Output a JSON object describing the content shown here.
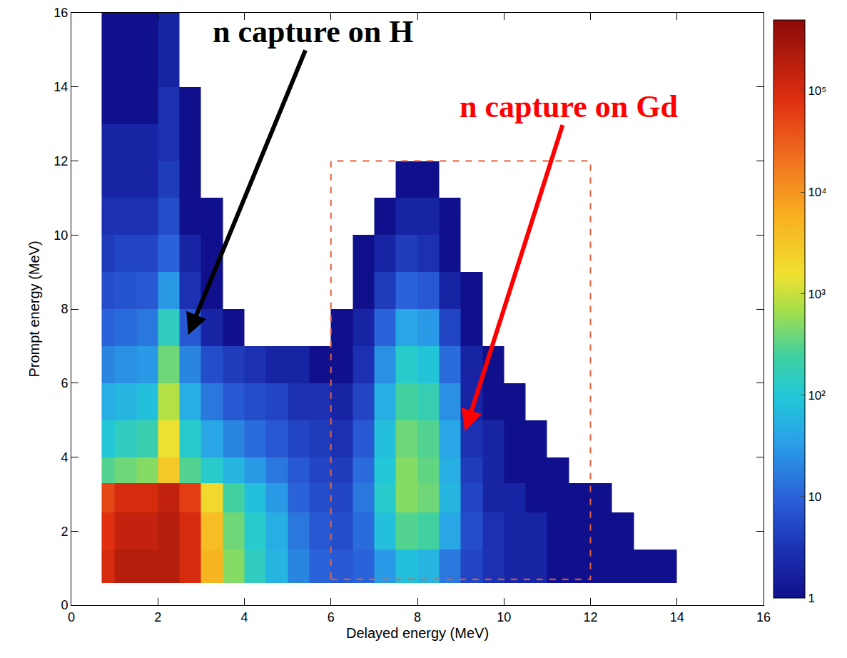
{
  "chart_data": {
    "type": "heatmap",
    "xlabel": "Delayed energy (MeV)",
    "ylabel": "Prompt energy (MeV)",
    "xlim": [
      0,
      16
    ],
    "ylim": [
      0,
      16
    ],
    "xticks": [
      0,
      2,
      4,
      6,
      8,
      10,
      12,
      14,
      16
    ],
    "yticks": [
      0,
      2,
      4,
      6,
      8,
      10,
      12,
      14,
      16
    ],
    "log": "z",
    "color_range": [
      1,
      500000
    ],
    "color_ticks": [
      1,
      10,
      {
        "value": 100,
        "label": "10²"
      },
      {
        "value": 1000,
        "label": "10³"
      },
      {
        "value": 10000,
        "label": "10⁴"
      },
      {
        "value": 100000,
        "label": "10⁵"
      }
    ],
    "x_bins": [
      0.7,
      1,
      1.5,
      2,
      2.5,
      3,
      3.5,
      4,
      4.5,
      5,
      5.5,
      6,
      6.5,
      7,
      7.5,
      8,
      8.5,
      9,
      9.5,
      10,
      10.5,
      11,
      11.5,
      12,
      12.5,
      13,
      13.5,
      14,
      14.5,
      15,
      15.5,
      16
    ],
    "y_bins": [
      0.6,
      1.5,
      2.5,
      3.3,
      4,
      5,
      6,
      7,
      8,
      9,
      10,
      11,
      12,
      13,
      14,
      15,
      16
    ],
    "counts": [
      [
        100000,
        200000,
        200000,
        200000,
        100000,
        5000,
        500,
        150,
        60,
        20,
        10,
        8,
        10,
        30,
        80,
        60,
        15,
        5,
        3,
        2,
        2,
        1,
        1,
        1,
        1,
        1,
        1,
        null,
        null,
        null,
        null
      ],
      [
        80000,
        150000,
        150000,
        200000,
        100000,
        4000,
        400,
        120,
        50,
        15,
        8,
        6,
        12,
        80,
        300,
        250,
        40,
        6,
        3,
        2,
        2,
        1,
        1,
        1,
        1,
        null,
        null,
        null,
        null,
        null,
        null
      ],
      [
        50000,
        100000,
        100000,
        150000,
        60000,
        2000,
        250,
        80,
        30,
        10,
        6,
        5,
        15,
        120,
        500,
        400,
        60,
        5,
        2,
        2,
        1,
        1,
        1,
        1,
        null,
        null,
        null,
        null,
        null,
        null,
        null
      ],
      [
        300,
        400,
        500,
        3000,
        300,
        120,
        60,
        30,
        15,
        8,
        5,
        4,
        12,
        100,
        500,
        350,
        50,
        4,
        2,
        1,
        1,
        1,
        null,
        null,
        null,
        null,
        null,
        null,
        null,
        null,
        null
      ],
      [
        100,
        150,
        200,
        1500,
        120,
        40,
        20,
        12,
        8,
        5,
        4,
        3,
        8,
        80,
        400,
        300,
        40,
        3,
        2,
        1,
        1,
        null,
        null,
        null,
        null,
        null,
        null,
        null,
        null,
        null,
        null
      ],
      [
        50,
        60,
        80,
        800,
        50,
        15,
        8,
        6,
        5,
        3,
        3,
        2,
        5,
        50,
        250,
        180,
        25,
        2,
        1,
        1,
        null,
        null,
        null,
        null,
        null,
        null,
        null,
        null,
        null,
        null,
        null
      ],
      [
        20,
        25,
        30,
        400,
        20,
        6,
        4,
        3,
        2,
        2,
        1,
        1,
        3,
        25,
        120,
        90,
        12,
        2,
        1,
        null,
        null,
        null,
        null,
        null,
        null,
        null,
        null,
        null,
        null,
        null,
        null
      ],
      [
        10,
        12,
        15,
        150,
        8,
        2,
        1,
        null,
        null,
        null,
        null,
        1,
        2,
        10,
        40,
        30,
        5,
        1,
        null,
        null,
        null,
        null,
        null,
        null,
        null,
        null,
        null,
        null,
        null,
        null,
        null
      ],
      [
        6,
        7,
        8,
        30,
        3,
        1,
        null,
        null,
        null,
        null,
        null,
        null,
        1,
        4,
        10,
        8,
        2,
        1,
        null,
        null,
        null,
        null,
        null,
        null,
        null,
        null,
        null,
        null,
        null,
        null,
        null
      ],
      [
        4,
        5,
        5,
        10,
        2,
        1,
        null,
        null,
        null,
        null,
        null,
        null,
        1,
        2,
        4,
        3,
        1,
        null,
        null,
        null,
        null,
        null,
        null,
        null,
        null,
        null,
        null,
        null,
        null,
        null,
        null
      ],
      [
        3,
        3,
        3,
        6,
        1,
        1,
        null,
        null,
        null,
        null,
        null,
        null,
        null,
        1,
        2,
        2,
        1,
        null,
        null,
        null,
        null,
        null,
        null,
        null,
        null,
        null,
        null,
        null,
        null,
        null,
        null
      ],
      [
        2,
        2,
        2,
        4,
        1,
        null,
        null,
        null,
        null,
        null,
        null,
        null,
        null,
        null,
        1,
        1,
        null,
        null,
        null,
        null,
        null,
        null,
        null,
        null,
        null,
        null,
        null,
        null,
        null,
        null,
        null
      ],
      [
        2,
        2,
        2,
        3,
        1,
        null,
        null,
        null,
        null,
        null,
        null,
        null,
        null,
        null,
        null,
        null,
        null,
        null,
        null,
        null,
        null,
        null,
        null,
        null,
        null,
        null,
        null,
        null,
        null,
        null,
        null
      ],
      [
        1,
        1,
        1,
        3,
        1,
        null,
        null,
        null,
        null,
        null,
        null,
        null,
        null,
        null,
        null,
        null,
        null,
        null,
        null,
        null,
        null,
        null,
        null,
        null,
        null,
        null,
        null,
        null,
        null,
        null,
        null
      ],
      [
        1,
        1,
        1,
        2,
        null,
        null,
        null,
        null,
        null,
        null,
        null,
        null,
        null,
        null,
        null,
        null,
        null,
        null,
        null,
        null,
        null,
        null,
        null,
        null,
        null,
        null,
        null,
        null,
        null,
        null,
        null
      ],
      [
        1,
        1,
        1,
        2,
        null,
        null,
        null,
        null,
        null,
        null,
        null,
        null,
        null,
        null,
        null,
        null,
        null,
        null,
        null,
        null,
        null,
        null,
        null,
        null,
        null,
        null,
        null,
        null,
        null,
        null,
        null
      ]
    ],
    "annotations": [
      {
        "text": "n capture on H",
        "x": 2.7,
        "y": 7.3,
        "color": "#000000"
      },
      {
        "text": "n capture on Gd",
        "x": 9.1,
        "y": 4.7,
        "color": "#ff0000"
      }
    ],
    "selection_box": {
      "x": [
        6,
        12
      ],
      "y": [
        0.7,
        12
      ]
    }
  }
}
